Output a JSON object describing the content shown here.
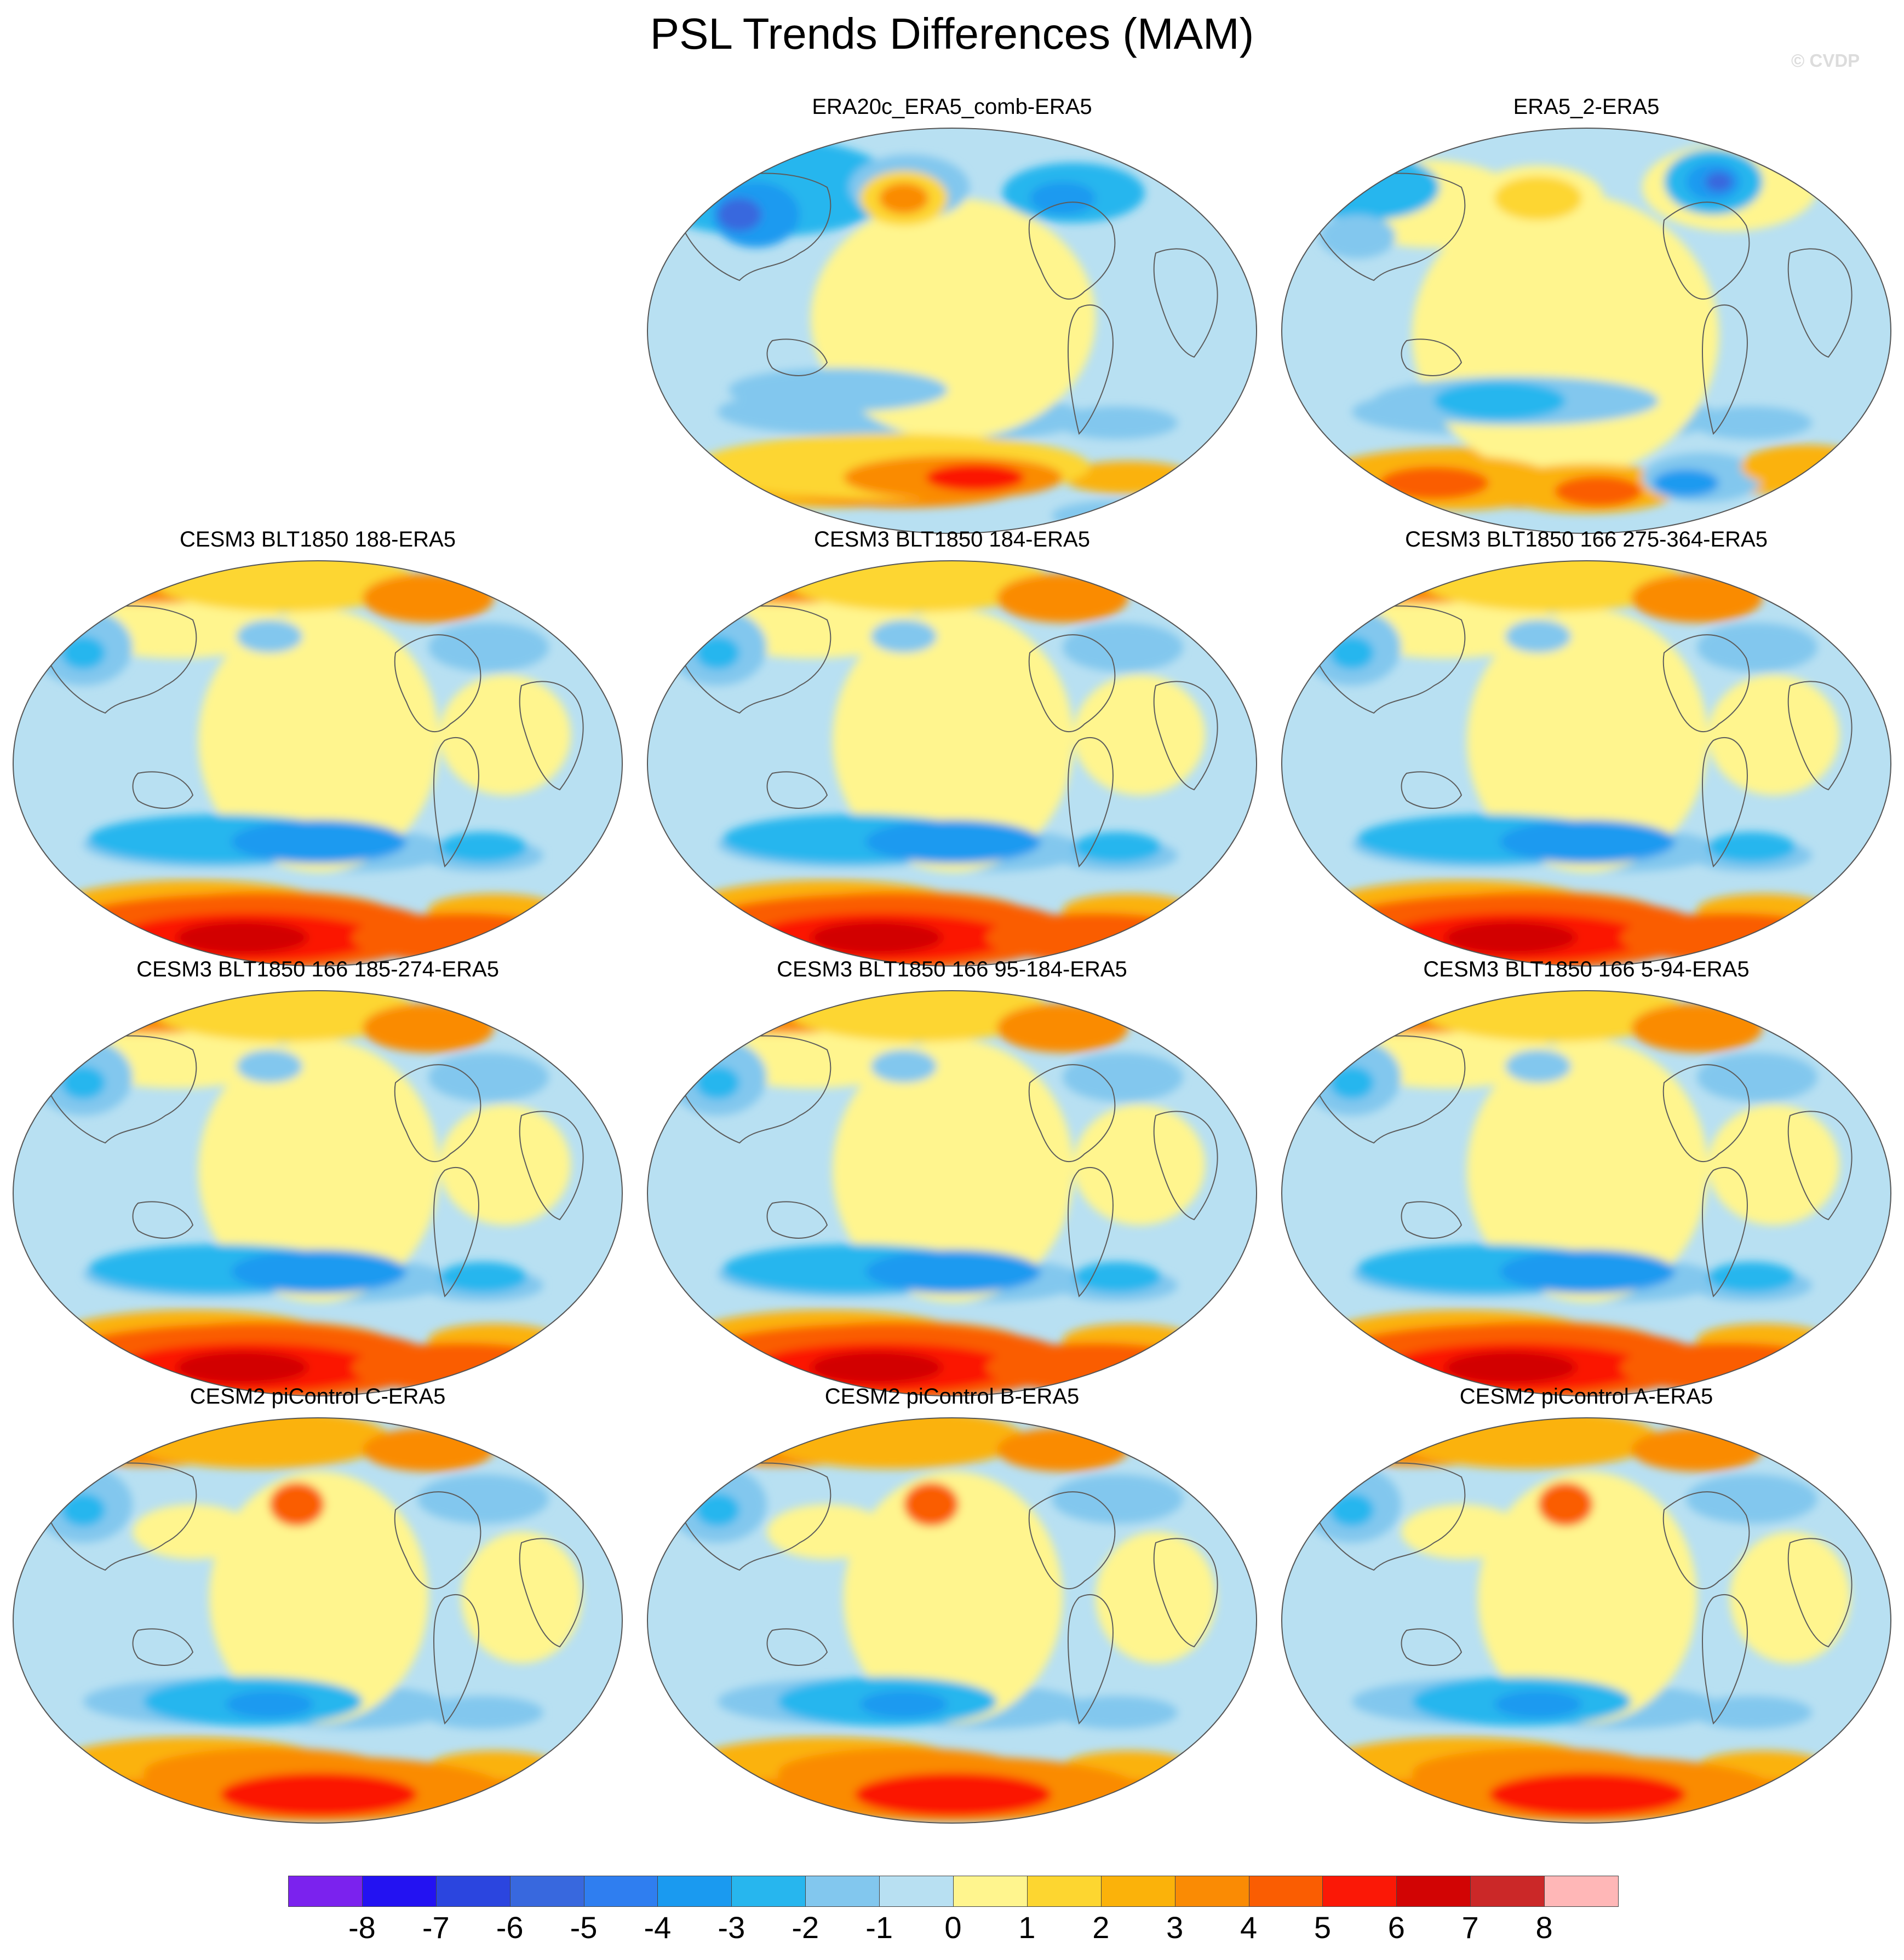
{
  "title": "PSL Trends Differences (MAM)",
  "copyright": "© CVDP",
  "panels": [
    {
      "title": "ERA20c_ERA5_comb-ERA5",
      "pattern": "era20c"
    },
    {
      "title": "ERA5_2-ERA5",
      "pattern": "era5"
    },
    {
      "title": "CESM3 BLT1850 188-ERA5",
      "pattern": "cesm3"
    },
    {
      "title": "CESM3 BLT1850 184-ERA5",
      "pattern": "cesm3"
    },
    {
      "title": "CESM3 BLT1850 166 275-364-ERA5",
      "pattern": "cesm3"
    },
    {
      "title": "CESM3 BLT1850 166 185-274-ERA5",
      "pattern": "cesm3"
    },
    {
      "title": "CESM3 BLT1850 166 95-184-ERA5",
      "pattern": "cesm3"
    },
    {
      "title": "CESM3 BLT1850 166 5-94-ERA5",
      "pattern": "cesm3"
    },
    {
      "title": "CESM2 piControl C-ERA5",
      "pattern": "cesm2"
    },
    {
      "title": "CESM2 piControl B-ERA5",
      "pattern": "cesm2"
    },
    {
      "title": "CESM2 piControl A-ERA5",
      "pattern": "cesm2"
    }
  ],
  "colorbar": {
    "labels": [
      "-8",
      "-7",
      "-6",
      "-5",
      "-4",
      "-3",
      "-2",
      "-1",
      "0",
      "1",
      "2",
      "3",
      "4",
      "5",
      "6",
      "7",
      "8"
    ],
    "colors": [
      "#7b22ee",
      "#2312f2",
      "#2b45df",
      "#3868de",
      "#2f7ef0",
      "#1a9af0",
      "#27b6ee",
      "#82c7ee",
      "#b8e0f2",
      "#fff58e",
      "#fdd630",
      "#fbb20a",
      "#fa8b04",
      "#fa5d02",
      "#fb1806",
      "#d20404",
      "#cb2828",
      "#ffb7b7"
    ]
  }
}
